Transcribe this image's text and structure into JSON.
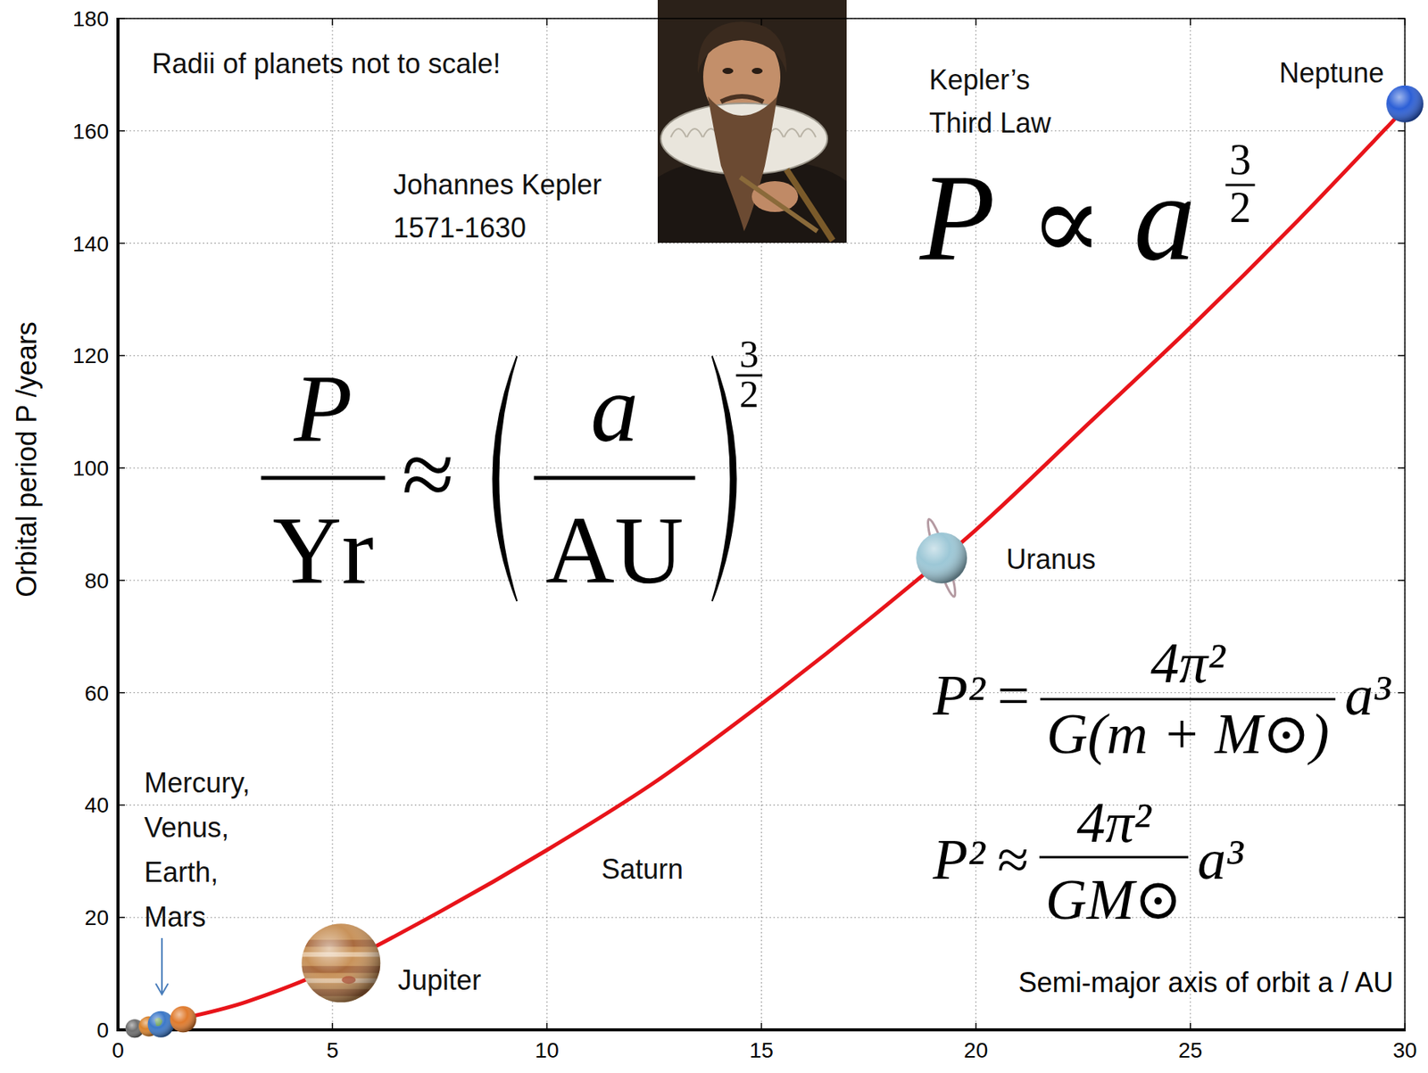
{
  "chart_data": {
    "type": "line",
    "xlabel": "Semi-major axis of orbit a / AU",
    "ylabel": "Orbital period P /years",
    "xlim": [
      0,
      30
    ],
    "ylim": [
      0,
      180
    ],
    "xticks": [
      0,
      5,
      10,
      15,
      20,
      25,
      30
    ],
    "yticks": [
      0,
      20,
      40,
      60,
      80,
      100,
      120,
      140,
      160,
      180
    ],
    "grid": true,
    "series": [
      {
        "type": "line",
        "color": "#e8141a",
        "line_style": "solid",
        "x": [
          1.5,
          3,
          5,
          7.5,
          10,
          12.5,
          15,
          17.5,
          20,
          22.5,
          25,
          27.5,
          30
        ],
        "values": [
          2,
          5,
          11,
          21,
          32,
          44,
          58,
          73,
          89,
          107,
          125,
          144,
          164
        ]
      },
      {
        "type": "scatter",
        "marker": "circle",
        "x": [
          0.39,
          0.72,
          1,
          1.52,
          5.2,
          19.2,
          30
        ],
        "values": [
          0.24,
          0.62,
          1,
          1.88,
          11.9,
          84,
          164.8
        ],
        "colors": [
          "#6f6f6f",
          "#d9822b",
          "#3c78c8",
          "#e07a2c",
          "#c8925a",
          "#9cc7d6",
          "#2c5fd6"
        ]
      }
    ],
    "planet_labels": [
      "Mercury, Venus, Earth, Mars",
      "Jupiter",
      "Saturn",
      "Uranus",
      "Neptune"
    ],
    "note": "Radii of planets not to scale!",
    "portrait_caption": [
      "Johannes Kepler",
      "1571-1630"
    ],
    "law_title": "Kepler’s Third Law",
    "formulas": [
      {
        "lhs": "P",
        "relation": "∝",
        "rhs": "a",
        "exponent": [
          "3",
          "2"
        ]
      },
      {
        "lhs": [
          "P",
          "Yr"
        ],
        "relation": "≈",
        "rhs": [
          "a",
          "AU"
        ],
        "exponent": [
          "3",
          "2"
        ]
      },
      {
        "lhs": "P²",
        "relation": "=",
        "coefficient": [
          "4π²",
          "G(m + M⊙)"
        ],
        "rhs": "a³"
      },
      {
        "lhs": "P²",
        "relation": "≈",
        "coefficient": [
          "4π²",
          "GM⊙"
        ],
        "rhs": "a³"
      }
    ]
  }
}
